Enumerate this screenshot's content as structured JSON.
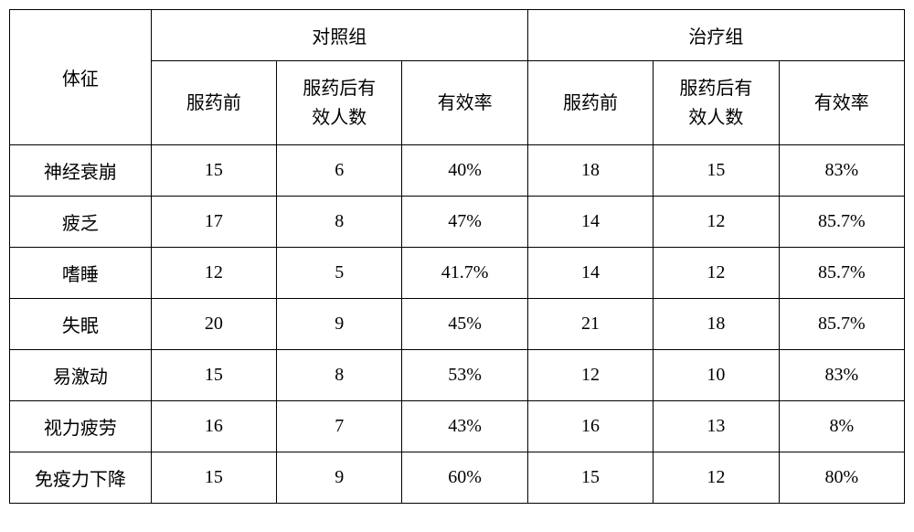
{
  "table": {
    "headers": {
      "symptom": "体征",
      "group1": "对照组",
      "group2": "治疗组",
      "sub": {
        "before": "服药前",
        "after": "服药后有\n效人数",
        "rate": "有效率"
      }
    },
    "rows": [
      {
        "symptom": "神经衰崩",
        "g1_before": "15",
        "g1_after": "6",
        "g1_rate": "40%",
        "g2_before": "18",
        "g2_after": "15",
        "g2_rate": "83%"
      },
      {
        "symptom": "疲乏",
        "g1_before": "17",
        "g1_after": "8",
        "g1_rate": "47%",
        "g2_before": "14",
        "g2_after": "12",
        "g2_rate": "85.7%"
      },
      {
        "symptom": "嗜睡",
        "g1_before": "12",
        "g1_after": "5",
        "g1_rate": "41.7%",
        "g2_before": "14",
        "g2_after": "12",
        "g2_rate": "85.7%"
      },
      {
        "symptom": "失眠",
        "g1_before": "20",
        "g1_after": "9",
        "g1_rate": "45%",
        "g2_before": "21",
        "g2_after": "18",
        "g2_rate": "85.7%"
      },
      {
        "symptom": "易激动",
        "g1_before": "15",
        "g1_after": "8",
        "g1_rate": "53%",
        "g2_before": "12",
        "g2_after": "10",
        "g2_rate": "83%"
      },
      {
        "symptom": "视力疲劳",
        "g1_before": "16",
        "g1_after": "7",
        "g1_rate": "43%",
        "g2_before": "16",
        "g2_after": "13",
        "g2_rate": "8%"
      },
      {
        "symptom": "免疫力下降",
        "g1_before": "15",
        "g1_after": "9",
        "g1_rate": "60%",
        "g2_before": "15",
        "g2_after": "12",
        "g2_rate": "80%"
      }
    ],
    "style": {
      "border_color": "#000000",
      "text_color": "#000000",
      "background_color": "#ffffff",
      "font_size": 20,
      "font_family": "SimSun",
      "header_row_height": 56,
      "subheader_row_height": 92,
      "data_row_height": 56
    }
  }
}
